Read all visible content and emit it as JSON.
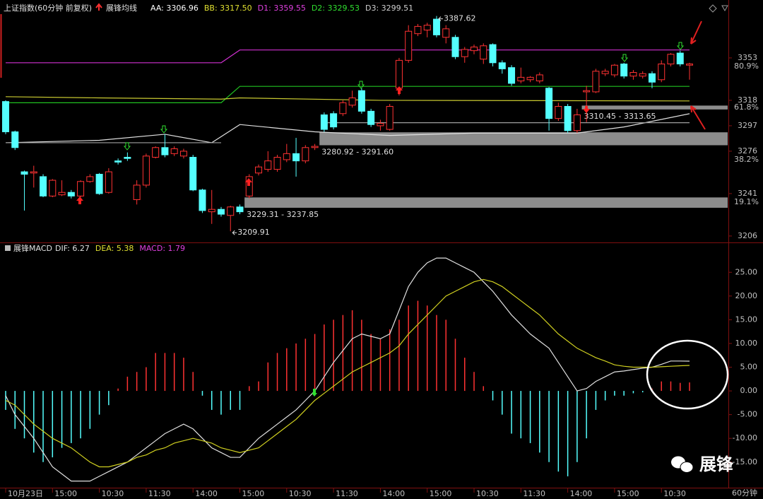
{
  "chart_data": {
    "type": "candlestick",
    "title": "上证指数(60分钟 前复权)",
    "indicator_title": "展锋均线",
    "indicator_labels": [
      {
        "label": "AA: 3306.96",
        "color": "#ffffff"
      },
      {
        "label": "BB: 3317.50",
        "color": "#e0e030"
      },
      {
        "label": "D1: 3359.55",
        "color": "#e040e0"
      },
      {
        "label": "D2: 3329.53",
        "color": "#30e030"
      },
      {
        "label": "D3: 3299.51",
        "color": "#d0d0d0"
      }
    ],
    "up_color": "#ff3232",
    "down_color": "#54ffff",
    "candles": [
      [
        3317,
        3318,
        3290,
        3292
      ],
      [
        3292,
        3293,
        3277,
        3279
      ],
      [
        3259,
        3260,
        3227,
        3257
      ],
      [
        3258,
        3264,
        3246,
        3259
      ],
      [
        3255,
        3257,
        3238,
        3239
      ],
      [
        3239,
        3253,
        3238,
        3252
      ],
      [
        3240,
        3252,
        3239,
        3242
      ],
      [
        3242,
        3244,
        3237,
        3239
      ],
      [
        3239,
        3252,
        3238,
        3251
      ],
      [
        3251,
        3257,
        3250,
        3255
      ],
      [
        3257,
        3258,
        3240,
        3241
      ],
      [
        3242,
        3262,
        3241,
        3259
      ],
      [
        3268,
        3270,
        3265,
        3267
      ],
      [
        3271,
        3275,
        3268,
        3270
      ],
      [
        3236,
        3252,
        3232,
        3248
      ],
      [
        3248,
        3274,
        3246,
        3272
      ],
      [
        3271,
        3280,
        3270,
        3279
      ],
      [
        3279,
        3290,
        3271,
        3273
      ],
      [
        3274,
        3280,
        3272,
        3278
      ],
      [
        3272,
        3278,
        3270,
        3276
      ],
      [
        3271,
        3273,
        3243,
        3244
      ],
      [
        3244,
        3245,
        3225,
        3227
      ],
      [
        3226,
        3244,
        3216,
        3228
      ],
      [
        3228,
        3230,
        3222,
        3224
      ],
      [
        3223,
        3231,
        3209.91,
        3230
      ],
      [
        3230,
        3232,
        3224,
        3226
      ],
      [
        3239,
        3257,
        3237,
        3255
      ],
      [
        3258,
        3265,
        3256,
        3263
      ],
      [
        3261,
        3276,
        3259,
        3268
      ],
      [
        3261,
        3273,
        3259,
        3271
      ],
      [
        3269,
        3282,
        3267,
        3274
      ],
      [
        3274,
        3287,
        3255,
        3268
      ],
      [
        3268,
        3281,
        3266,
        3279
      ],
      [
        3279,
        3282,
        3277,
        3280
      ],
      [
        3306,
        3308,
        3292,
        3294
      ],
      [
        3307,
        3309,
        3294,
        3296
      ],
      [
        3307,
        3318,
        3305,
        3316
      ],
      [
        3314,
        3326,
        3312,
        3320
      ],
      [
        3326,
        3328,
        3307,
        3309
      ],
      [
        3309,
        3311,
        3296,
        3298
      ],
      [
        3297,
        3302,
        3293,
        3299
      ],
      [
        3294,
        3315,
        3293,
        3313
      ],
      [
        3328,
        3353,
        3322,
        3351
      ],
      [
        3351,
        3380,
        3349,
        3375
      ],
      [
        3373,
        3381,
        3371,
        3379
      ],
      [
        3376,
        3382,
        3370,
        3380
      ],
      [
        3385,
        3387.62,
        3370,
        3372
      ],
      [
        3370,
        3380,
        3365,
        3377
      ],
      [
        3370,
        3372,
        3352,
        3354
      ],
      [
        3354,
        3362,
        3349,
        3360
      ],
      [
        3359,
        3364,
        3356,
        3362
      ],
      [
        3352,
        3365,
        3348,
        3363
      ],
      [
        3364,
        3365,
        3346,
        3349
      ],
      [
        3349,
        3351,
        3340,
        3344
      ],
      [
        3345,
        3347,
        3330,
        3332
      ],
      [
        3334,
        3345,
        3332,
        3337
      ],
      [
        3335,
        3338,
        3333,
        3337
      ],
      [
        3334,
        3341,
        3332,
        3339
      ],
      [
        3328,
        3329,
        3293,
        3303
      ],
      [
        3303,
        3316,
        3301,
        3313
      ],
      [
        3313,
        3315,
        3291,
        3293
      ],
      [
        3293,
        3311,
        3291,
        3306
      ],
      [
        3325,
        3330,
        3300,
        3326
      ],
      [
        3325,
        3344,
        3324,
        3342
      ],
      [
        3340,
        3344,
        3338,
        3342
      ],
      [
        3339,
        3348,
        3337,
        3347
      ],
      [
        3348,
        3349,
        3336,
        3338
      ],
      [
        3338,
        3343,
        3335,
        3341
      ],
      [
        3338,
        3342,
        3336,
        3340
      ],
      [
        3340,
        3342,
        3328,
        3333
      ],
      [
        3335,
        3351,
        3333,
        3348
      ],
      [
        3348,
        3357,
        3346,
        3356
      ],
      [
        3357,
        3359,
        3346,
        3348
      ],
      [
        3347,
        3349,
        3335,
        3348
      ]
    ],
    "lines": [
      {
        "name": "D1",
        "color": "#d030d0",
        "x": [
          0,
          23,
          25,
          73
        ],
        "values": [
          3349,
          3349,
          3359.55,
          3359.55
        ]
      },
      {
        "name": "D2",
        "color": "#20c020",
        "x": [
          0,
          23,
          25,
          73
        ],
        "values": [
          3316,
          3316,
          3329.53,
          3329.53
        ]
      },
      {
        "name": "BB",
        "color": "#c8c830",
        "x": [
          0,
          10,
          23,
          25,
          40,
          73
        ],
        "values": [
          3321,
          3320,
          3319,
          3320,
          3318,
          3317.5
        ]
      },
      {
        "name": "AA",
        "color": "#e0e0e0",
        "x": [
          0,
          10,
          17,
          22,
          25,
          33,
          41,
          50,
          61,
          66,
          73
        ],
        "values": [
          3283,
          3285,
          3290,
          3283,
          3298,
          3292,
          3289,
          3291,
          3291,
          3296,
          3306.96
        ]
      },
      {
        "name": "D3",
        "color": "#a0a0a0",
        "x": [
          0,
          23,
          24,
          34,
          73
        ],
        "values": [
          3283,
          3283,
          null,
          3299.51,
          3299.51
        ]
      }
    ],
    "zones": [
      {
        "start": 26,
        "low": 3229.31,
        "high": 3237.85,
        "label": "3229.31 - 3237.85"
      },
      {
        "start": 34,
        "low": 3280.92,
        "high": 3291.6,
        "label": "3280.92 - 3291.60"
      },
      {
        "start": 62,
        "low": 3310.45,
        "high": 3313.65,
        "label": "3310.45 - 3313.65"
      }
    ],
    "annotations": [
      {
        "index": 46,
        "value": 3387.62
      },
      {
        "index": 24,
        "value": 3209.91
      }
    ],
    "ylim": [
      3200.7,
      3400.8
    ],
    "yticks": [
      3353,
      3318,
      3297,
      3276,
      3241,
      3206
    ],
    "fib_levels": [
      {
        "value": 3346,
        "label": "80.9%"
      },
      {
        "value": 3312,
        "label": "61.8%"
      },
      {
        "value": 3269,
        "label": "38.2%"
      },
      {
        "value": 3234,
        "label": "19.1%"
      }
    ],
    "macd_title": "展锋MACD",
    "macd_labels": [
      {
        "label": "DIF: 6.27",
        "color": "#e0e0e0"
      },
      {
        "label": "DEA: 5.38",
        "color": "#e0e030"
      },
      {
        "label": "MACD: 1.79",
        "color": "#e040e0"
      }
    ],
    "macd": [
      -4,
      -8,
      -10,
      -13,
      -15,
      -14,
      -12,
      -11,
      -10,
      -8,
      -5,
      -3,
      0.5,
      3,
      4,
      5,
      8,
      8,
      8,
      7,
      4,
      -1,
      -4,
      -5,
      -4,
      -4,
      1,
      2,
      6,
      8,
      9,
      10,
      11,
      12,
      14,
      15,
      16,
      17,
      15,
      12,
      11,
      13,
      15,
      18,
      19,
      18,
      16,
      15,
      11,
      7,
      4,
      1,
      -2,
      -5,
      -9,
      -10,
      -11,
      -13,
      -15,
      -17,
      -18,
      -15,
      -10,
      -4,
      -2,
      -1,
      -1,
      -0.5,
      -0.3,
      0.5,
      2,
      2,
      1.7,
      1.79
    ],
    "dif": [
      -1,
      -5,
      -7.5,
      -10,
      -13,
      -16,
      -17.5,
      -19,
      -19,
      -19,
      -18,
      -17,
      -16,
      -15,
      -13.5,
      -12,
      -10.5,
      -9,
      -8,
      -7,
      -8,
      -10,
      -12,
      -13,
      -14,
      -14,
      -12,
      -10,
      -8.5,
      -7,
      -5.5,
      -4,
      -2,
      0,
      3,
      6,
      8.5,
      11,
      12,
      11.5,
      11,
      12,
      17,
      22,
      25,
      27,
      28,
      28,
      27,
      26,
      25,
      23,
      21,
      18.5,
      16,
      14,
      12,
      10.5,
      9,
      6,
      3,
      0,
      0.5,
      2,
      3,
      4,
      4.2,
      4.5,
      4.8,
      5,
      5.6,
      6.3,
      6.3,
      6.27
    ],
    "dea": [
      -2,
      -3,
      -5,
      -7,
      -8.5,
      -10,
      -11,
      -12,
      -13.5,
      -15,
      -16,
      -16,
      -15.5,
      -15,
      -14,
      -13.5,
      -12.5,
      -12,
      -11,
      -10.5,
      -10,
      -10.5,
      -11,
      -12,
      -12.5,
      -13,
      -12.5,
      -12,
      -10.5,
      -9,
      -7.5,
      -6,
      -4,
      -2,
      -0.5,
      1,
      2.5,
      4,
      5,
      6,
      7,
      8,
      9.5,
      12,
      14,
      16,
      18,
      20,
      21,
      22,
      23,
      23.5,
      23,
      22,
      20.5,
      19,
      17.5,
      16,
      14,
      12,
      10.5,
      9,
      8,
      7,
      6.3,
      5.5,
      5.2,
      5,
      5,
      5,
      5.1,
      5.2,
      5.3,
      5.38
    ],
    "macd_ylim": [
      -20.4,
      31
    ],
    "macd_yticks": [
      {
        "value": 25,
        "label": "25.00"
      },
      {
        "value": 20,
        "label": "20.00"
      },
      {
        "value": 15,
        "label": "15.00"
      },
      {
        "value": 10,
        "label": "10.00"
      },
      {
        "value": 5,
        "label": "5.00"
      },
      {
        "value": 0,
        "label": "0.00"
      },
      {
        "value": -5,
        "label": "-5.00"
      },
      {
        "value": -10,
        "label": "-10.00"
      },
      {
        "value": -15,
        "label": "-15.00"
      }
    ],
    "xticks": [
      {
        "value": 0,
        "label": "10月23日"
      },
      {
        "value": 5,
        "label": "15:00"
      },
      {
        "value": 10,
        "label": "10:30"
      },
      {
        "value": 15,
        "label": "11:30"
      },
      {
        "value": 20,
        "label": "14:00"
      },
      {
        "value": 25,
        "label": "15:00"
      },
      {
        "value": 30,
        "label": "10:30"
      },
      {
        "value": 35,
        "label": "11:30"
      },
      {
        "value": 40,
        "label": "14:00"
      },
      {
        "value": 45,
        "label": "15:00"
      },
      {
        "value": 50,
        "label": "10:30"
      },
      {
        "value": 55,
        "label": "11:30"
      },
      {
        "value": 60,
        "label": "14:00"
      },
      {
        "value": 65,
        "label": "15:00"
      },
      {
        "value": 70,
        "label": "10:30"
      }
    ],
    "period_label": "60分钟",
    "watermark": "展锋"
  }
}
